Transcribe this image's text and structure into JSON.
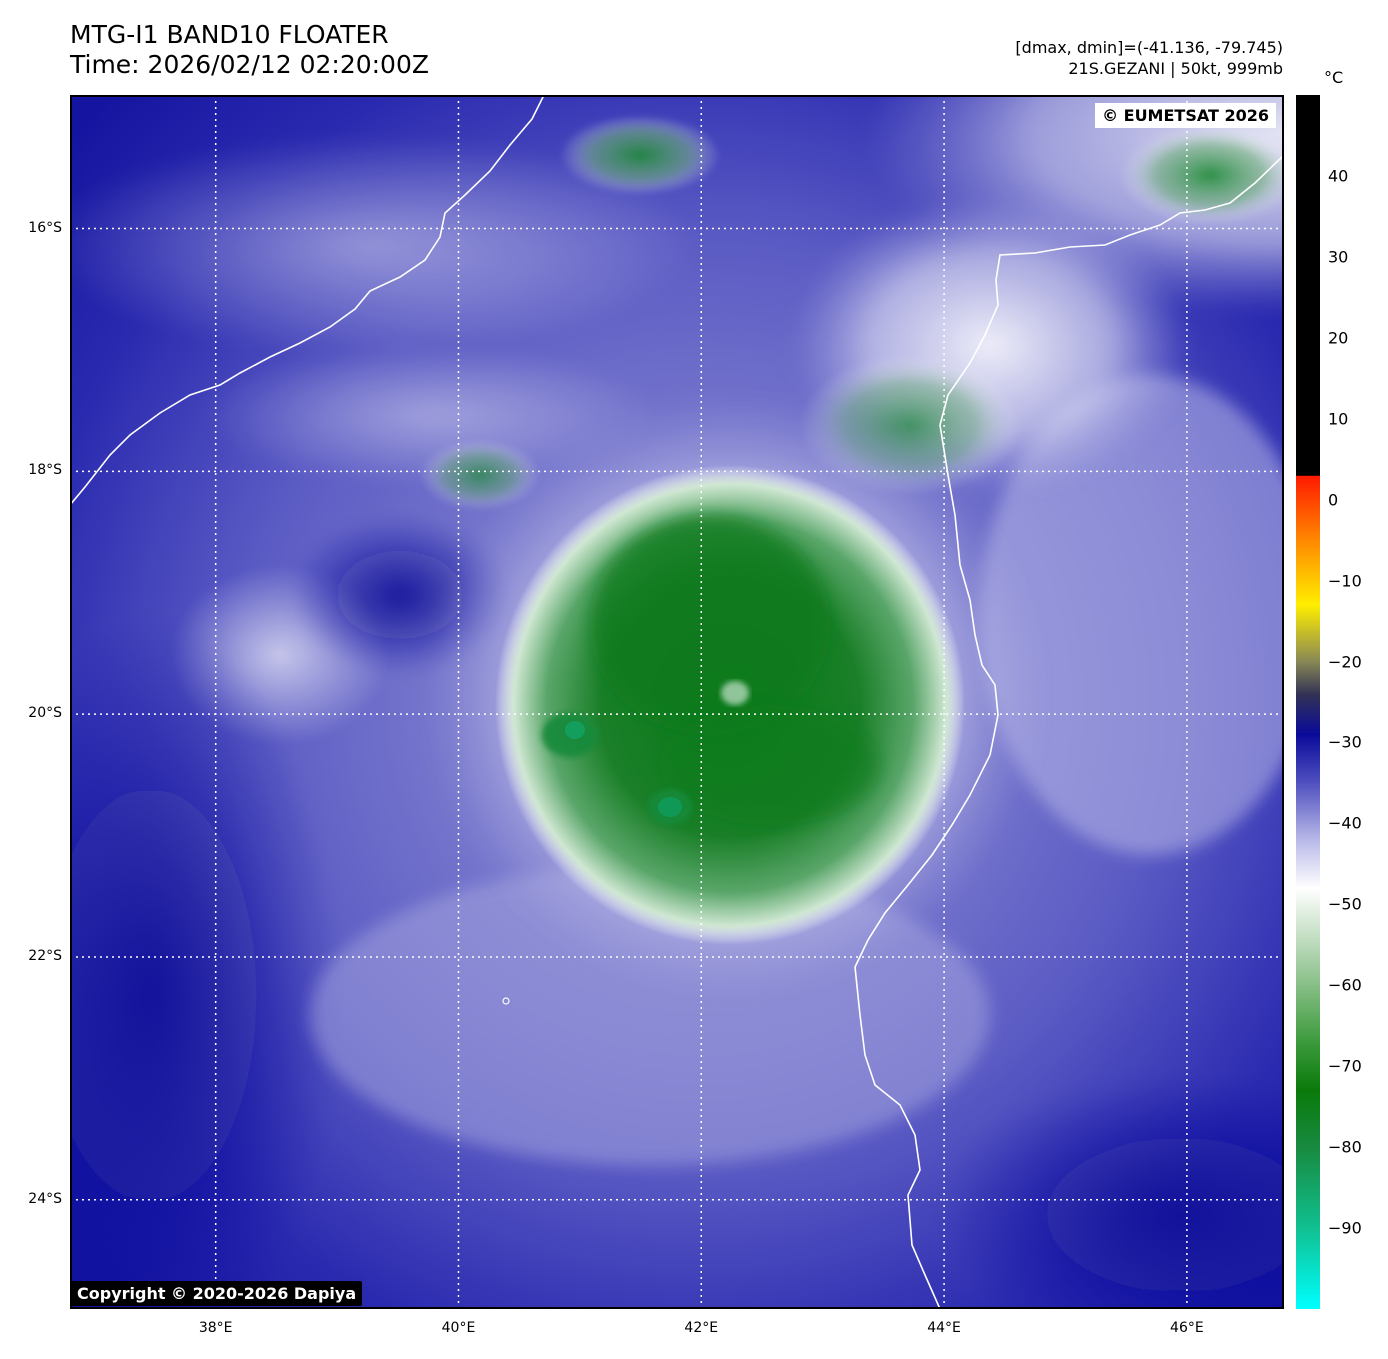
{
  "title": {
    "line1": "MTG-I1 BAND10 FLOATER",
    "line2": "Time: 2026/02/12 02:20:00Z"
  },
  "info": {
    "range": "[dmax, dmin]=(-41.136, -79.745)",
    "storm": "21S.GEZANI | 50kt, 999mb"
  },
  "map": {
    "lon_range": [
      36.8,
      46.8
    ],
    "lat_range": [
      -24.9,
      -14.9
    ],
    "lat_ticks": [
      "16°S",
      "18°S",
      "20°S",
      "22°S",
      "24°S"
    ],
    "lat_values": [
      -16,
      -18,
      -20,
      -22,
      -24
    ],
    "lon_ticks": [
      "38°E",
      "40°E",
      "42°E",
      "44°E",
      "46°E"
    ],
    "lon_values": [
      38,
      40,
      42,
      44,
      46
    ],
    "grid": "dotted white",
    "storm_center": {
      "lon": 41.9,
      "lat": -19.4
    },
    "coast_color": "#ffffff"
  },
  "badges": {
    "eumetsat": "© EUMETSAT 2026",
    "copyright": "Copyright © 2020-2026 Dapiya"
  },
  "colorbar": {
    "unit": "°C",
    "range": [
      -100,
      50
    ],
    "ticks": [
      "40",
      "30",
      "20",
      "10",
      "0",
      "−10",
      "−20",
      "−30",
      "−40",
      "−50",
      "−60",
      "−70",
      "−80",
      "−90"
    ],
    "tick_values": [
      40,
      30,
      20,
      10,
      0,
      -10,
      -20,
      -30,
      -40,
      -50,
      -60,
      -70,
      -80,
      -90
    ],
    "stops": [
      {
        "t": 50,
        "color": "#000000"
      },
      {
        "t": 3,
        "color": "#000000"
      },
      {
        "t": 2.9,
        "color": "#ff1a00"
      },
      {
        "t": -5,
        "color": "#ff8800"
      },
      {
        "t": -13,
        "color": "#ffee00"
      },
      {
        "t": -20,
        "color": "#888855"
      },
      {
        "t": -24,
        "color": "#333355"
      },
      {
        "t": -29,
        "color": "#0a0a9a"
      },
      {
        "t": -35,
        "color": "#5050c0"
      },
      {
        "t": -42,
        "color": "#b8b8e8"
      },
      {
        "t": -48,
        "color": "#ffffff"
      },
      {
        "t": -58,
        "color": "#9cc99c"
      },
      {
        "t": -67,
        "color": "#3c9a3c"
      },
      {
        "t": -73,
        "color": "#0a7a0a"
      },
      {
        "t": -80,
        "color": "#188a40"
      },
      {
        "t": -90,
        "color": "#10c090"
      },
      {
        "t": -100,
        "color": "#00ffff"
      }
    ]
  }
}
